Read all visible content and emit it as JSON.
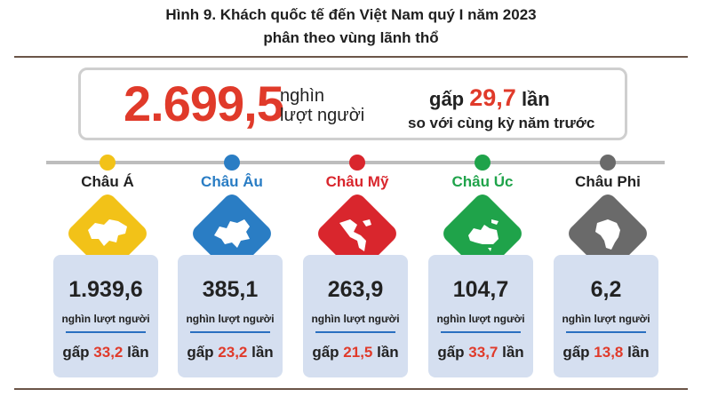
{
  "title_line1": "Hình 9. Khách quốc tế đến Việt Nam quý I năm 2023",
  "title_line2": "phân theo vùng lãnh thổ",
  "summary": {
    "total": "2.699,5",
    "unit_line1": "nghìn",
    "unit_line2": "lượt người",
    "ratio_prefix": "gấp",
    "ratio_value": "29,7",
    "ratio_suffix": "lần",
    "ratio_note": "so với cùng kỳ năm trước"
  },
  "regions": [
    {
      "name": "Châu Á",
      "value": "1.939,6",
      "unit": "nghìn lượt người",
      "ratio_prefix": "gấp",
      "ratio": "33,2",
      "ratio_suffix": "lần",
      "color": "#f2c218",
      "name_color": "#222222",
      "icon": "asia-map-icon"
    },
    {
      "name": "Châu Âu",
      "value": "385,1",
      "unit": "nghìn lượt người",
      "ratio_prefix": "gấp",
      "ratio": "23,2",
      "ratio_suffix": "lần",
      "color": "#2a7dc4",
      "name_color": "#2a7dc4",
      "icon": "europe-map-icon"
    },
    {
      "name": "Châu Mỹ",
      "value": "263,9",
      "unit": "nghìn lượt người",
      "ratio_prefix": "gấp",
      "ratio": "21,5",
      "ratio_suffix": "lần",
      "color": "#d9262d",
      "name_color": "#d9262d",
      "icon": "americas-map-icon"
    },
    {
      "name": "Châu Úc",
      "value": "104,7",
      "unit": "nghìn lượt người",
      "ratio_prefix": "gấp",
      "ratio": "33,7",
      "ratio_suffix": "lần",
      "color": "#1fa34a",
      "name_color": "#1fa34a",
      "icon": "oceania-map-icon"
    },
    {
      "name": "Châu Phi",
      "value": "6,2",
      "unit": "nghìn lượt người",
      "ratio_prefix": "gấp",
      "ratio": "13,8",
      "ratio_suffix": "lần",
      "color": "#6a6a6a",
      "name_color": "#222222",
      "icon": "africa-map-icon"
    }
  ]
}
